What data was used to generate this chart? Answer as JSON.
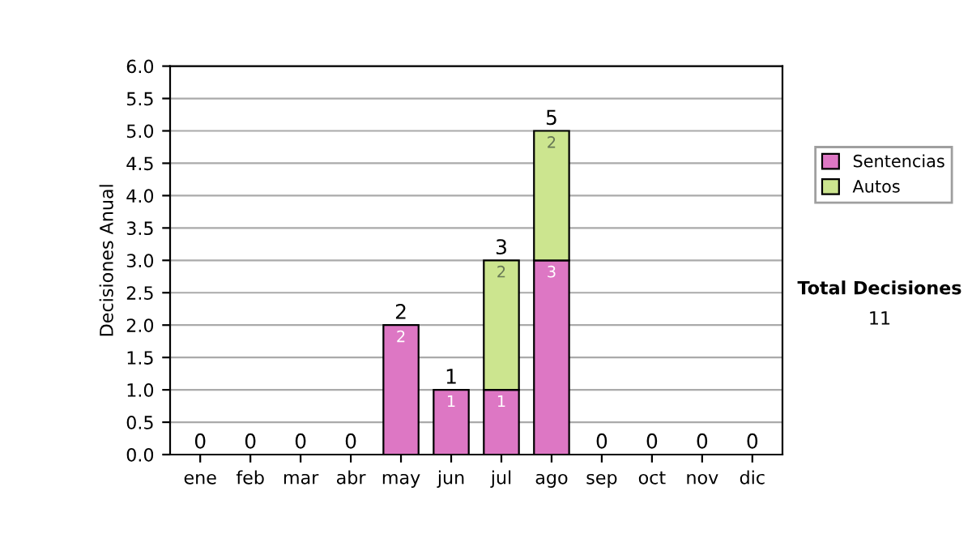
{
  "chart_data": {
    "type": "bar",
    "stacked": true,
    "ylabel": "Decisiones Anual",
    "categories": [
      "ene",
      "feb",
      "mar",
      "abr",
      "may",
      "jun",
      "jul",
      "ago",
      "sep",
      "oct",
      "nov",
      "dic"
    ],
    "series": [
      {
        "name": "Sentencias",
        "color": "#dd77c4",
        "values": [
          0,
          0,
          0,
          0,
          2,
          1,
          1,
          3,
          0,
          0,
          0,
          0
        ],
        "value_labels": [
          null,
          null,
          null,
          null,
          "2",
          "1",
          "1",
          "3",
          null,
          null,
          null,
          null
        ]
      },
      {
        "name": "Autos",
        "color": "#cce58f",
        "values": [
          0,
          0,
          0,
          0,
          0,
          0,
          2,
          2,
          0,
          0,
          0,
          0
        ],
        "value_labels": [
          null,
          null,
          null,
          null,
          null,
          null,
          "2",
          "2",
          null,
          null,
          null,
          null
        ]
      }
    ],
    "totals": [
      "0",
      "0",
      "0",
      "0",
      "2",
      "1",
      "3",
      "5",
      "0",
      "0",
      "0",
      "0"
    ],
    "ylim": [
      0,
      6
    ],
    "yticks": [
      {
        "value": 0,
        "label": "0.0"
      },
      {
        "value": 0.5,
        "label": "0.5"
      },
      {
        "value": 1,
        "label": "1.0"
      },
      {
        "value": 1.5,
        "label": "1.5"
      },
      {
        "value": 2,
        "label": "2.0"
      },
      {
        "value": 2.5,
        "label": "2.5"
      },
      {
        "value": 3,
        "label": "3.0"
      },
      {
        "value": 3.5,
        "label": "3.5"
      },
      {
        "value": 4,
        "label": "4.0"
      },
      {
        "value": 4.5,
        "label": "4.5"
      },
      {
        "value": 5,
        "label": "5.0"
      },
      {
        "value": 5.5,
        "label": "5.5"
      },
      {
        "value": 6,
        "label": "6.0"
      }
    ],
    "grid": "y",
    "legend": "right",
    "annotations": [
      "Total Decisiones",
      "11"
    ]
  }
}
